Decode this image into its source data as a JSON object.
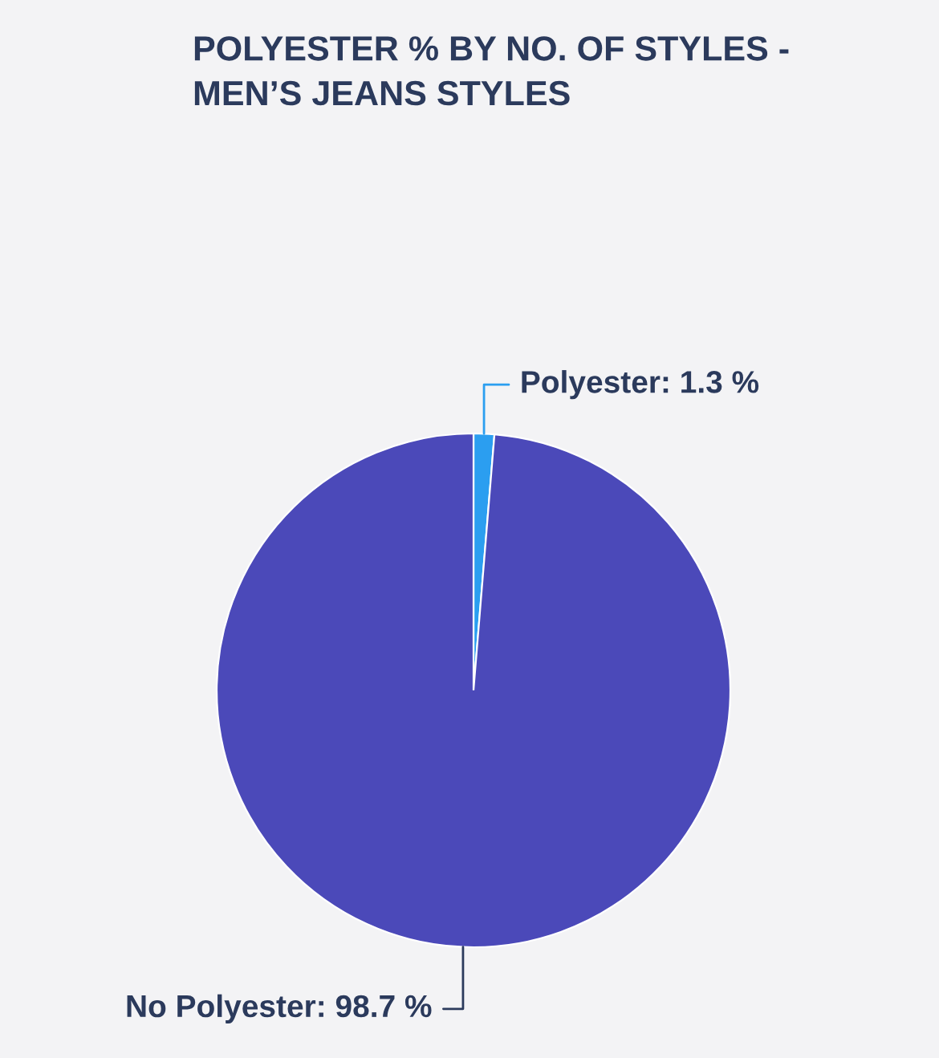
{
  "chart_data": {
    "type": "pie",
    "title": "POLYESTER % BY NO. OF STYLES -\nMEN’S JEANS STYLES",
    "categories": [
      "Polyester",
      "No Polyester"
    ],
    "values": [
      1.3,
      98.7
    ],
    "colors": [
      "#2b9ef0",
      "#4b49b9"
    ],
    "value_labels": [
      "1.3 %",
      "98.7 %"
    ],
    "legend": false
  }
}
